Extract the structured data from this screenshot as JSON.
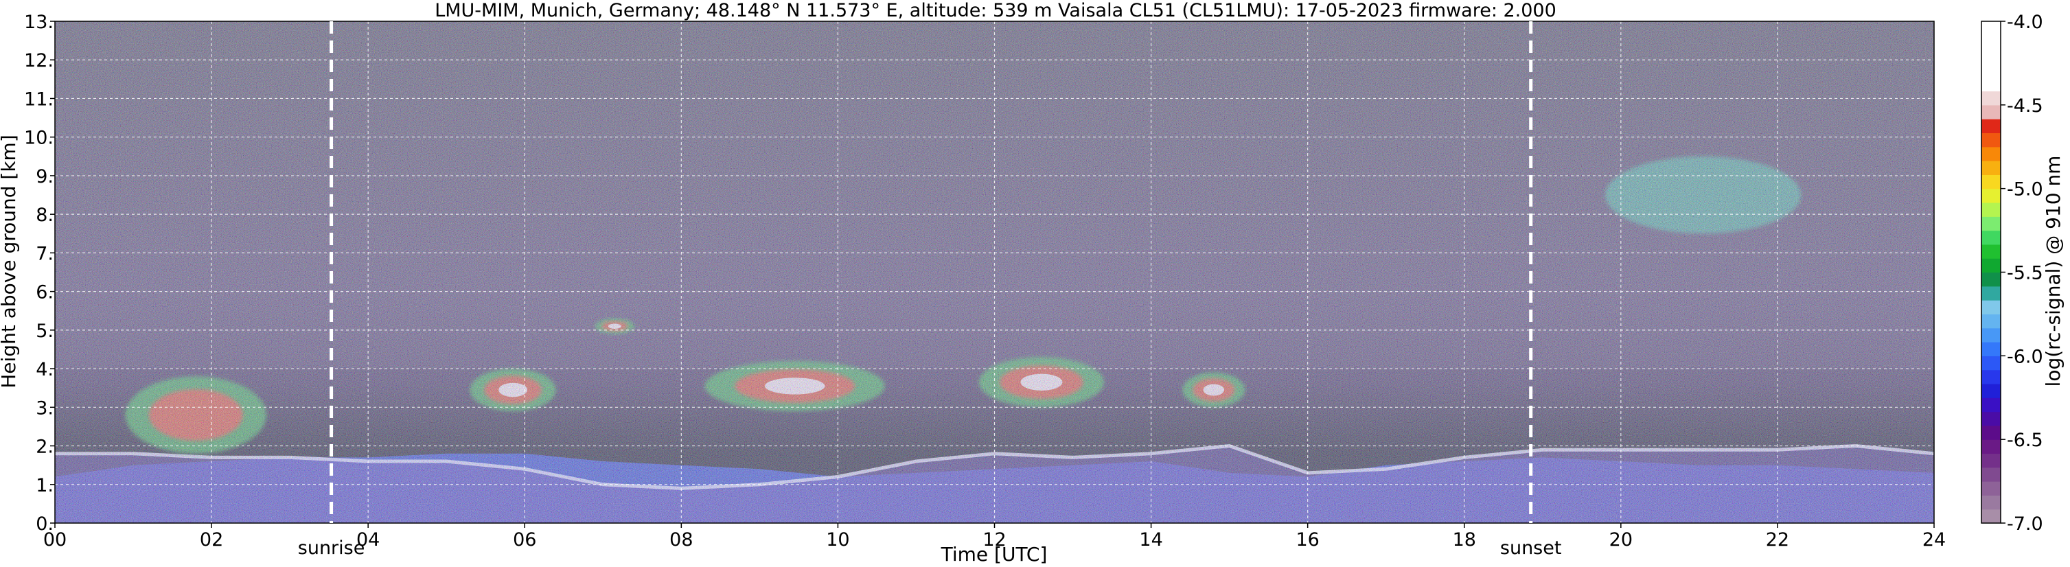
{
  "chart_data": {
    "type": "heatmap",
    "title": "LMU-MIM, Munich, Germany; 48.148° N 11.573° E, altitude: 539 m    Vaisala CL51 (CL51LMU): 17-05-2023    firmware: 2.000",
    "xlabel": "Time [UTC]",
    "ylabel": "Height above ground [km]",
    "xlim": [
      0,
      24
    ],
    "ylim": [
      0,
      13
    ],
    "x_ticks": [
      "00",
      "02",
      "04",
      "06",
      "08",
      "10",
      "12",
      "14",
      "16",
      "18",
      "20",
      "22",
      "24"
    ],
    "y_ticks": [
      "0.",
      "1.",
      "2.",
      "3.",
      "4.",
      "5.",
      "6.",
      "7.",
      "8.",
      "9.",
      "10.",
      "11.",
      "12.",
      "13."
    ],
    "grid": true,
    "colorbar": {
      "label": "log(rc-signal) @ 910 nm",
      "range": [
        -7.0,
        -4.0
      ],
      "ticks": [
        "-4.0",
        "-4.5",
        "-5.0",
        "-5.5",
        "-6.0",
        "-6.5",
        "-7.0"
      ],
      "colors": [
        "#a88ea8",
        "#9a7aa0",
        "#8e6298",
        "#804a90",
        "#74308a",
        "#6a1a86",
        "#5c0c8a",
        "#4a0ca6",
        "#3a10c4",
        "#2020d8",
        "#2838ec",
        "#2c58f6",
        "#3478fa",
        "#4898f6",
        "#64b4f0",
        "#80c8ea",
        "#30a8a0",
        "#10904a",
        "#10a830",
        "#20c030",
        "#40d860",
        "#7cec70",
        "#b4f450",
        "#e6f030",
        "#f8d820",
        "#f8b010",
        "#f88808",
        "#f05810",
        "#e02818",
        "#e8b8b8",
        "#f0d8d8",
        "#ffffff",
        "#ffffff",
        "#ffffff",
        "#ffffff",
        "#ffffff"
      ]
    },
    "annotations": [
      {
        "text": "sunrise",
        "x": 3.53
      },
      {
        "text": "sunset",
        "x": 18.85
      }
    ],
    "layers": [
      {
        "name": "noise",
        "y": [
          4,
          13
        ]
      },
      {
        "name": "boundary-layer",
        "x": [
          0,
          24
        ],
        "top": [
          1.2,
          1.5,
          1.6,
          1.7,
          1.7,
          1.8,
          1.8,
          1.6,
          1.5,
          1.4,
          1.2,
          1.3,
          1.4,
          1.5,
          1.6,
          1.3,
          1.2,
          1.5,
          1.6,
          1.7,
          1.6,
          1.5,
          1.5,
          1.4,
          1.3
        ]
      },
      {
        "name": "residual-layer",
        "x": [
          0,
          24
        ],
        "top": [
          1.8,
          1.8,
          1.7,
          1.7,
          1.6,
          1.6,
          1.4,
          1.0,
          0.9,
          1.0,
          1.2,
          1.6,
          1.8,
          1.7,
          1.8,
          2.0,
          1.3,
          1.4,
          1.7,
          1.9,
          1.9,
          1.9,
          1.9,
          2.0,
          1.8
        ]
      },
      {
        "name": "aerosol-layer",
        "x": [
          0.9,
          2.7
        ],
        "y": [
          1.8,
          3.8
        ]
      },
      {
        "name": "cloud",
        "x": [
          5.3,
          6.4
        ],
        "y": [
          2.9,
          4.0
        ]
      },
      {
        "name": "cloud",
        "x": [
          6.9,
          7.4
        ],
        "y": [
          4.9,
          5.3
        ]
      },
      {
        "name": "cloud",
        "x": [
          8.3,
          10.6
        ],
        "y": [
          2.9,
          4.2
        ]
      },
      {
        "name": "cloud",
        "x": [
          11.8,
          13.4
        ],
        "y": [
          3.0,
          4.3
        ]
      },
      {
        "name": "cloud",
        "x": [
          14.4,
          15.2
        ],
        "y": [
          3.0,
          3.9
        ]
      },
      {
        "name": "cirrus",
        "x": [
          19.8,
          22.3
        ],
        "y": [
          7.5,
          9.5
        ]
      }
    ]
  }
}
